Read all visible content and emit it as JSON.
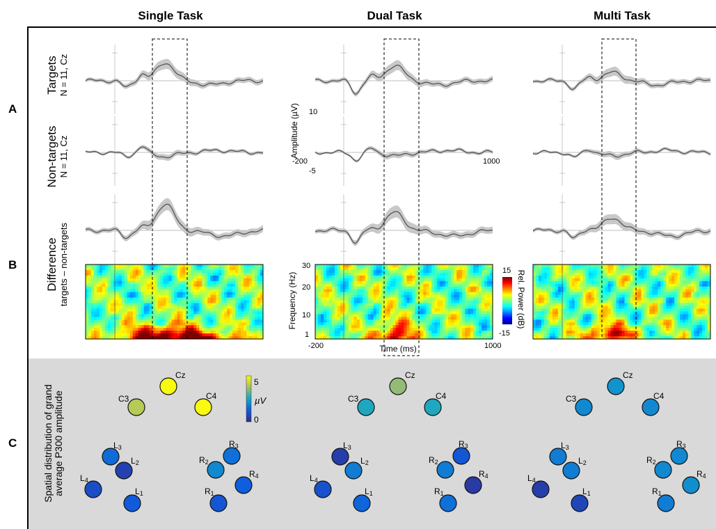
{
  "column_titles": [
    "Single Task",
    "Dual Task",
    "Multi Task"
  ],
  "section_labels": {
    "a": "A",
    "b": "B",
    "c": "C"
  },
  "row_labels": {
    "targets": {
      "title": "Targets",
      "subtitle": "N = 11, Cz"
    },
    "nontargets": {
      "title": "Non-targets",
      "subtitle": "N = 11, Cz"
    },
    "difference": {
      "title": "Difference",
      "subtitle": "targets – non-targets"
    }
  },
  "erp_axis": {
    "ylabel": "Amplitude (µV)",
    "ytick_top": "10",
    "ytick_bottom": "-5",
    "xtick_left": "-200",
    "xtick_right": "1000"
  },
  "tf_axis": {
    "ylabel": "Frequency (Hz)",
    "yticks": [
      "30",
      "20",
      "10",
      "1"
    ],
    "xlabel": "Time (ms)",
    "xtick_left": "-200",
    "xtick_right": "1000"
  },
  "tf_colorbar": {
    "max": "15",
    "min": "-15",
    "label": "Rel. Power  (dB)"
  },
  "topo_label": "Spatial distribution of grand average P300 amplitude",
  "topo_colorbar": {
    "max": "5",
    "min": "0",
    "unit": "µV"
  },
  "colors": {
    "waveform": "#555555",
    "shade": "#c8c8c8",
    "panel_c_bg": "#d9d9d9",
    "frame": "#000000"
  },
  "electrodes": {
    "labels": {
      "Cz": "Cz",
      "C3": "C3",
      "C4": "C4",
      "L1": "L1",
      "L2": "L2",
      "L3": "L3",
      "L4": "L4",
      "R1": "R1",
      "R2": "R2",
      "R3": "R3",
      "R4": "R4"
    },
    "amplitudes": [
      {
        "Cz": 5.0,
        "C3": 4.0,
        "C4": 5.0,
        "L1": 1.2,
        "L2": 0.6,
        "L3": 1.5,
        "L4": 0.9,
        "R1": 1.1,
        "R2": 2.0,
        "R3": 1.6,
        "R4": 1.3
      },
      {
        "Cz": 3.6,
        "C3": 2.6,
        "C4": 2.6,
        "L1": 1.4,
        "L2": 1.8,
        "L3": 0.5,
        "L4": 1.0,
        "R1": 1.6,
        "R2": 1.8,
        "R3": 1.1,
        "R4": 0.4
      },
      {
        "Cz": 2.2,
        "C3": 2.0,
        "C4": 2.0,
        "L1": 0.7,
        "L2": 1.8,
        "L3": 1.8,
        "L4": 0.5,
        "R1": 1.8,
        "R2": 2.0,
        "R3": 2.0,
        "R4": 2.1
      }
    ]
  }
}
